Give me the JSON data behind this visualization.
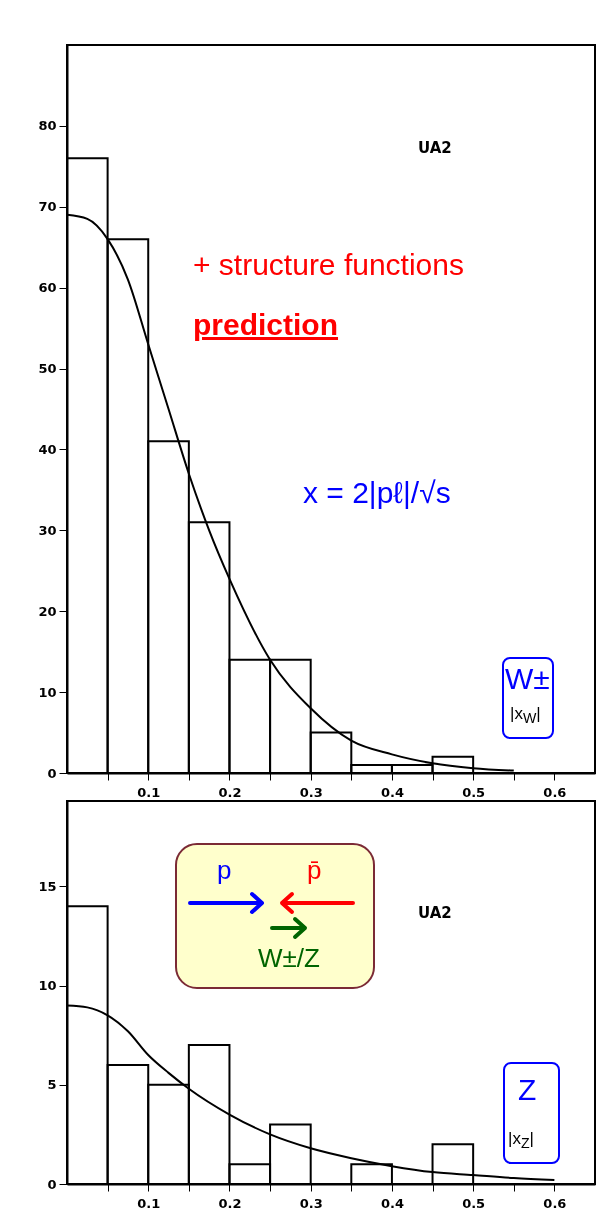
{
  "chart_data": [
    {
      "type": "histogram",
      "xlim": [
        0,
        0.65
      ],
      "ylim": [
        0,
        90
      ],
      "grid": false,
      "xticks": [
        {
          "value": 0.05,
          "label": null
        },
        0.1,
        {
          "value": 0.15,
          "label": null
        },
        0.2,
        {
          "value": 0.25,
          "label": null
        },
        0.3,
        {
          "value": 0.35,
          "label": null
        },
        0.4,
        {
          "value": 0.45,
          "label": null
        },
        0.5,
        {
          "value": 0.55,
          "label": null
        },
        0.6
      ],
      "yticks": [
        0,
        10,
        20,
        30,
        40,
        50,
        60,
        70,
        80
      ],
      "annotations": [
        "UA2",
        "+ structure functions",
        "prediction",
        "x = 2|pℓ|/√s",
        "W±",
        "|x$_{W}$|"
      ],
      "series": [
        {
          "color": "#000000",
          "bins": [
            0,
            0.05,
            0.1,
            0.15,
            0.2,
            0.25,
            0.3,
            0.35,
            0.4,
            0.45,
            0.5
          ],
          "values": [
            76,
            66,
            41,
            31,
            14,
            14,
            5,
            1,
            1,
            2
          ]
        },
        {
          "type": "line",
          "color": "#000000",
          "x": [
            0,
            0.025,
            0.05,
            0.075,
            0.1,
            0.125,
            0.15,
            0.175,
            0.2,
            0.25,
            0.3,
            0.35,
            0.4,
            0.45,
            0.5,
            0.55
          ],
          "values": [
            69,
            68.5,
            66,
            61,
            53,
            45,
            37,
            30,
            24,
            14,
            8,
            4,
            2.3,
            1.2,
            0.6,
            0.3
          ]
        }
      ]
    },
    {
      "type": "histogram",
      "xlim": [
        0,
        0.65
      ],
      "ylim": [
        0,
        19.3
      ],
      "grid": false,
      "xticks": [
        {
          "value": 0.05,
          "label": null
        },
        0.1,
        {
          "value": 0.15,
          "label": null
        },
        0.2,
        {
          "value": 0.25,
          "label": null
        },
        0.3,
        {
          "value": 0.35,
          "label": null
        },
        0.4,
        {
          "value": 0.45,
          "label": null
        },
        0.5,
        {
          "value": 0.55,
          "label": null
        },
        0.6
      ],
      "yticks": [
        0,
        5,
        10,
        15
      ],
      "annotations": [
        "UA2",
        "p",
        "p̄",
        "W±/Z",
        "Z",
        "|x$_{Z}$|"
      ],
      "series": [
        {
          "color": "#000000",
          "bins": [
            0,
            0.05,
            0.1,
            0.15,
            0.2,
            0.25,
            0.3,
            0.35,
            0.4,
            0.45,
            0.5,
            0.55,
            0.6
          ],
          "values": [
            14,
            6,
            5,
            7,
            1,
            3,
            0,
            1,
            0,
            2,
            0,
            0
          ]
        },
        {
          "type": "line",
          "color": "#000000",
          "x": [
            0,
            0.025,
            0.05,
            0.075,
            0.1,
            0.125,
            0.15,
            0.2,
            0.25,
            0.3,
            0.35,
            0.4,
            0.45,
            0.5,
            0.55,
            0.6
          ],
          "values": [
            9,
            8.9,
            8.5,
            7.7,
            6.5,
            5.6,
            4.8,
            3.5,
            2.5,
            1.8,
            1.3,
            0.9,
            0.6,
            0.45,
            0.3,
            0.2
          ]
        }
      ]
    }
  ]
}
